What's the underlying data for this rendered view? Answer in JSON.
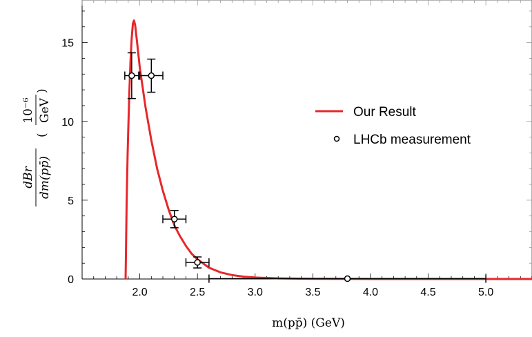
{
  "chart_data": {
    "type": "line",
    "xlabel": "m(pp̄) (GeV)",
    "ylabel": {
      "fraction_numerator": "dBr",
      "fraction_denominator": "dm(pp̄)",
      "unit_numerator": "10⁻⁶",
      "unit_denominator": "GeV"
    },
    "xlim": [
      1.5,
      5.4
    ],
    "ylim": [
      0,
      17.7
    ],
    "x_ticks": [
      "2.0",
      "2.5",
      "3.0",
      "3.5",
      "4.0",
      "4.5",
      "5.0"
    ],
    "y_ticks": [
      "0",
      "5",
      "10",
      "15"
    ],
    "legend_position": "right",
    "series": [
      {
        "name": "Our Result",
        "color": "#e8262a",
        "x": [
          1.877,
          1.879,
          1.882,
          1.886,
          1.89,
          1.895,
          1.9,
          1.91,
          1.92,
          1.93,
          1.94,
          1.95,
          1.96,
          1.98,
          2.0,
          2.05,
          2.1,
          2.15,
          2.2,
          2.25,
          2.3,
          2.35,
          2.4,
          2.45,
          2.5,
          2.6,
          2.7,
          2.8,
          2.9,
          3.0,
          3.2,
          3.5,
          4.0,
          4.5,
          5.0,
          5.4
        ],
        "y": [
          0,
          1.2,
          2.8,
          4.7,
          6.3,
          8.0,
          9.5,
          11.9,
          13.9,
          15.3,
          16.2,
          16.4,
          16.1,
          14.8,
          13.4,
          10.9,
          8.8,
          7.0,
          5.6,
          4.4,
          3.4,
          2.7,
          2.1,
          1.6,
          1.25,
          0.72,
          0.42,
          0.25,
          0.15,
          0.09,
          0.04,
          0.01,
          0.002,
          0.0,
          0.0,
          0.0
        ]
      }
    ],
    "points": {
      "name": "LHCb measurement",
      "data": [
        {
          "x": 1.93,
          "y": 12.9,
          "xerr": 0.06,
          "yerr": 1.45
        },
        {
          "x": 2.1,
          "y": 12.9,
          "xerr": 0.1,
          "yerr": 1.05
        },
        {
          "x": 2.3,
          "y": 3.8,
          "xerr": 0.1,
          "yerr": 0.55
        },
        {
          "x": 2.5,
          "y": 1.05,
          "xerr": 0.1,
          "yerr": 0.35
        },
        {
          "x": 3.8,
          "y": 0.02,
          "xerr": 1.2,
          "yerr": 0.0
        }
      ]
    }
  }
}
